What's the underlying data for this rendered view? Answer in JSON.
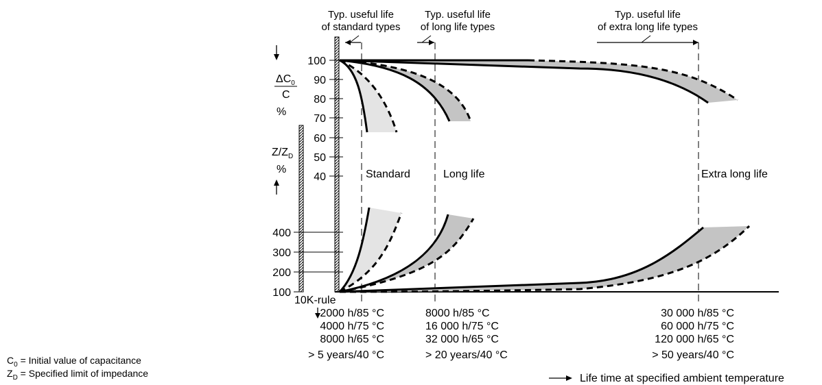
{
  "header_labels": [
    {
      "line1": "Typ. useful life",
      "line2": "of standard types"
    },
    {
      "line1": "Typ. useful life",
      "line2": "of long life types"
    },
    {
      "line1": "Typ. useful life",
      "line2": "of extra long life types"
    }
  ],
  "capacitance_axis": {
    "label_delta": "ΔC",
    "label_sub": "0",
    "label_den": "C",
    "label_unit": "%",
    "ticks": [
      "100",
      "90",
      "80",
      "70",
      "60",
      "50",
      "40"
    ]
  },
  "impedance_axis": {
    "label": "Z/Z",
    "label_sub": "D",
    "label_unit": "%",
    "ticks": [
      "400",
      "300",
      "200",
      "100"
    ]
  },
  "region_labels": {
    "standard": "Standard",
    "long_life": "Long life",
    "extra_long_life": "Extra long life"
  },
  "ten_k_rule": "10K-rule",
  "life_columns": [
    [
      "2000 h/85 °C",
      "4000 h/75 °C",
      "8000 h/65 °C",
      "> 5 years/40 °C"
    ],
    [
      "8000 h/85 °C",
      "16 000 h/75 °C",
      "32 000 h/65 °C",
      "> 20 years/40 °C"
    ],
    [
      "30 000 h/85 °C",
      "60 000 h/75 °C",
      "120 000 h/65 °C",
      "> 50 years/40 °C"
    ]
  ],
  "legend": {
    "c0_symbol": "C",
    "c0_sub": "0",
    "c0_text": " = Initial value of capacitance",
    "zd_symbol": "Z",
    "zd_sub": "D",
    "zd_text": " = Specified limit of impedance",
    "lifetime": "Life time at specified ambient temperature"
  },
  "colors": {
    "band_light": "#e4e4e4",
    "band_mid": "#c4c4c4",
    "ink": "#000000"
  }
}
